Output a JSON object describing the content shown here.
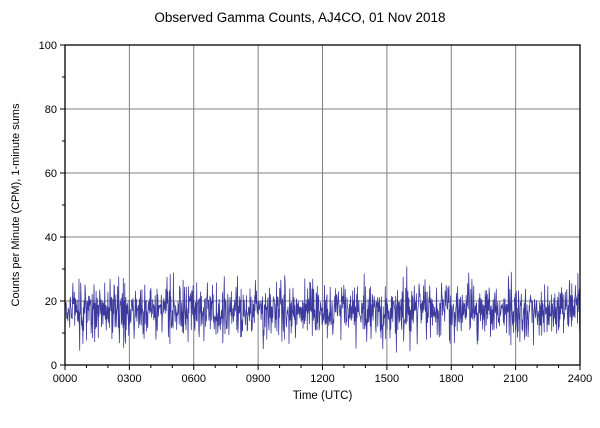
{
  "page": {
    "background": "#ffffff"
  },
  "chart_data": {
    "type": "line",
    "title": "Observed Gamma Counts, AJ4CO, 01 Nov 2018",
    "xlabel": "Time (UTC)",
    "ylabel": "Counts per Minute (CPM), 1-minute sums",
    "xlim": [
      0,
      1440
    ],
    "ylim": [
      0,
      100
    ],
    "x_tick_positions": [
      0,
      180,
      360,
      540,
      720,
      900,
      1080,
      1260,
      1440
    ],
    "x_tick_labels": [
      "0000",
      "0300",
      "0600",
      "0900",
      "1200",
      "1500",
      "1800",
      "2100",
      "2400"
    ],
    "x_minor_tick_step": 60,
    "y_tick_positions": [
      0,
      20,
      40,
      60,
      80,
      100
    ],
    "y_tick_labels": [
      "0",
      "20",
      "40",
      "60",
      "80",
      "100"
    ],
    "y_minor_tick_step": 10,
    "grid": true,
    "legend": "none",
    "frame_color": "#000000",
    "grid_color": "#808080",
    "series": [
      {
        "name": "Observed gamma counts (1-minute sums)",
        "color": "#3d3a9e",
        "summary": {
          "mean_cpm": 17,
          "typical_band_cpm": [
            10,
            25
          ],
          "min_cpm": 5,
          "max_cpm": 33,
          "n_points": 1440,
          "sample_interval_minutes": 1,
          "character": "stationary noise band, no events"
        },
        "synthesis": {
          "seed": 20181101,
          "mean": 17,
          "std": 4.3,
          "clip_min": 4,
          "clip_max": 33
        }
      }
    ]
  }
}
